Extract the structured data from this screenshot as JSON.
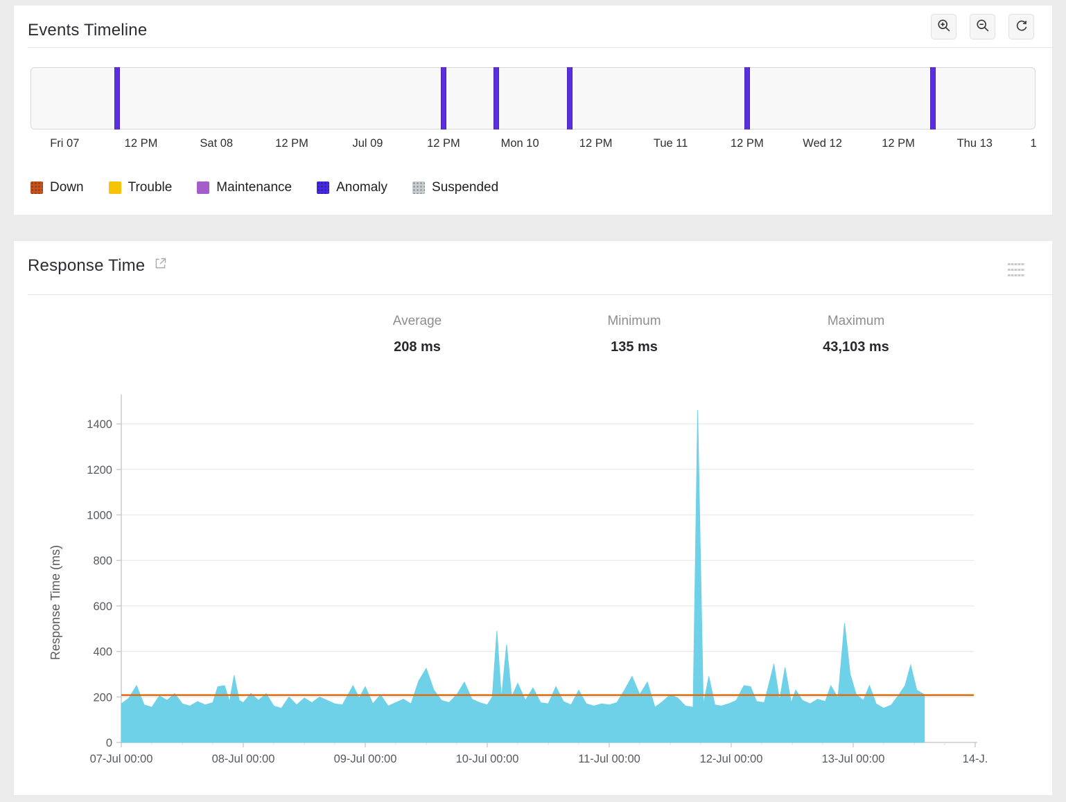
{
  "events_timeline": {
    "title": "Events Timeline",
    "toolbar": [
      "zoom-in",
      "zoom-out",
      "reset-zoom"
    ],
    "axis_labels": [
      {
        "text": "Fri 07",
        "pos_pct": 3.4
      },
      {
        "text": "12 PM",
        "pos_pct": 11.0
      },
      {
        "text": "Sat 08",
        "pos_pct": 18.5
      },
      {
        "text": "12 PM",
        "pos_pct": 26.0
      },
      {
        "text": "Jul 09",
        "pos_pct": 33.55
      },
      {
        "text": "12 PM",
        "pos_pct": 41.1
      },
      {
        "text": "Mon 10",
        "pos_pct": 48.7
      },
      {
        "text": "12 PM",
        "pos_pct": 56.25
      },
      {
        "text": "Tue 11",
        "pos_pct": 63.7
      },
      {
        "text": "12 PM",
        "pos_pct": 71.3
      },
      {
        "text": "Wed 12",
        "pos_pct": 78.8
      },
      {
        "text": "12 PM",
        "pos_pct": 86.35
      },
      {
        "text": "Thu 13",
        "pos_pct": 93.95
      },
      {
        "text": "1",
        "pos_pct": 99.8
      }
    ],
    "events": [
      {
        "type": "Anomaly",
        "pos_pct": 8.55,
        "color": "#5b2ee0"
      },
      {
        "type": "Anomaly",
        "pos_pct": 41.1,
        "color": "#5b2ee0"
      },
      {
        "type": "Anomaly",
        "pos_pct": 46.34,
        "color": "#5b2ee0"
      },
      {
        "type": "Anomaly",
        "pos_pct": 53.66,
        "color": "#5b2ee0"
      },
      {
        "type": "Anomaly",
        "pos_pct": 71.31,
        "color": "#5b2ee0"
      },
      {
        "type": "Anomaly",
        "pos_pct": 89.86,
        "color": "#5b2ee0"
      }
    ],
    "legend": [
      {
        "label": "Down",
        "color": "#c4531d",
        "pattern": "dots"
      },
      {
        "label": "Trouble",
        "color": "#f6c306",
        "pattern": "solid"
      },
      {
        "label": "Maintenance",
        "color": "#a55dc9",
        "pattern": "solid"
      },
      {
        "label": "Anomaly",
        "color": "#4629e0",
        "pattern": "dots"
      },
      {
        "label": "Suspended",
        "color": "#c7ced2",
        "pattern": "dots"
      }
    ]
  },
  "response_time": {
    "title": "Response Time",
    "stats": [
      {
        "label": "Average",
        "value": "208 ms"
      },
      {
        "label": "Minimum",
        "value": "135 ms"
      },
      {
        "label": "Maximum",
        "value": "43,103 ms"
      }
    ]
  },
  "chart_data": {
    "type": "area",
    "title": "Response Time",
    "xlabel": "",
    "ylabel": "Response Time (ms)",
    "x_tick_labels": [
      "07-Jul 00:00",
      "08-Jul 00:00",
      "09-Jul 00:00",
      "10-Jul 00:00",
      "11-Jul 00:00",
      "12-Jul 00:00",
      "13-Jul 00:00",
      "14-J."
    ],
    "y_ticks": [
      0,
      200,
      400,
      600,
      800,
      1000,
      1200,
      1400
    ],
    "ylim": [
      0,
      1530
    ],
    "grid": true,
    "average_line": {
      "value": 208,
      "color": "#dd6b10"
    },
    "series": [
      {
        "name": "Response Time",
        "color": "#6ed1e8",
        "x_unit": "hours since 07-Jul 00:00",
        "points": [
          [
            0,
            170
          ],
          [
            1.5,
            195
          ],
          [
            3,
            250
          ],
          [
            4.5,
            165
          ],
          [
            6,
            155
          ],
          [
            7.5,
            205
          ],
          [
            9,
            185
          ],
          [
            10.5,
            215
          ],
          [
            12,
            170
          ],
          [
            13.5,
            160
          ],
          [
            15,
            180
          ],
          [
            16.5,
            165
          ],
          [
            18,
            175
          ],
          [
            19,
            245
          ],
          [
            20.3,
            250
          ],
          [
            21.3,
            180
          ],
          [
            22.2,
            295
          ],
          [
            23.2,
            185
          ],
          [
            24,
            175
          ],
          [
            25.5,
            215
          ],
          [
            27,
            185
          ],
          [
            28.5,
            215
          ],
          [
            30,
            160
          ],
          [
            31.5,
            150
          ],
          [
            33,
            200
          ],
          [
            34.5,
            165
          ],
          [
            36,
            195
          ],
          [
            37.5,
            175
          ],
          [
            39,
            200
          ],
          [
            40.5,
            185
          ],
          [
            42,
            170
          ],
          [
            43.5,
            165
          ],
          [
            45.6,
            250
          ],
          [
            46.8,
            195
          ],
          [
            48,
            245
          ],
          [
            49.5,
            170
          ],
          [
            51,
            210
          ],
          [
            52.5,
            160
          ],
          [
            54,
            175
          ],
          [
            55.5,
            190
          ],
          [
            57,
            170
          ],
          [
            58.5,
            270
          ],
          [
            60,
            325
          ],
          [
            61.5,
            230
          ],
          [
            63,
            185
          ],
          [
            64.5,
            175
          ],
          [
            66,
            210
          ],
          [
            67.5,
            265
          ],
          [
            69,
            190
          ],
          [
            70.5,
            175
          ],
          [
            72,
            165
          ],
          [
            73,
            200
          ],
          [
            73.9,
            490
          ],
          [
            74.8,
            195
          ],
          [
            75.8,
            430
          ],
          [
            76.8,
            200
          ],
          [
            78,
            260
          ],
          [
            79.5,
            185
          ],
          [
            81,
            240
          ],
          [
            82.5,
            175
          ],
          [
            84,
            170
          ],
          [
            85.5,
            245
          ],
          [
            87,
            180
          ],
          [
            88.5,
            165
          ],
          [
            90,
            230
          ],
          [
            91.5,
            170
          ],
          [
            93,
            160
          ],
          [
            94.5,
            170
          ],
          [
            96,
            165
          ],
          [
            97.5,
            175
          ],
          [
            99,
            230
          ],
          [
            100.5,
            290
          ],
          [
            102,
            210
          ],
          [
            103.5,
            265
          ],
          [
            105,
            155
          ],
          [
            106.5,
            180
          ],
          [
            108,
            210
          ],
          [
            109.5,
            195
          ],
          [
            111,
            160
          ],
          [
            112.5,
            155
          ],
          [
            113.4,
            1460
          ],
          [
            114.5,
            165
          ],
          [
            115.6,
            290
          ],
          [
            116.8,
            165
          ],
          [
            118,
            160
          ],
          [
            119.5,
            170
          ],
          [
            121,
            185
          ],
          [
            122.5,
            250
          ],
          [
            123.8,
            245
          ],
          [
            125,
            180
          ],
          [
            126.5,
            175
          ],
          [
            128.4,
            345
          ],
          [
            129.5,
            185
          ],
          [
            130.6,
            330
          ],
          [
            131.8,
            175
          ],
          [
            132.7,
            230
          ],
          [
            134,
            185
          ],
          [
            135.5,
            170
          ],
          [
            137,
            190
          ],
          [
            138.5,
            180
          ],
          [
            139.6,
            250
          ],
          [
            141,
            195
          ],
          [
            142.3,
            525
          ],
          [
            143.4,
            300
          ],
          [
            144.6,
            210
          ],
          [
            146,
            185
          ],
          [
            147.2,
            250
          ],
          [
            148.5,
            170
          ],
          [
            150,
            150
          ],
          [
            151.5,
            165
          ],
          [
            153,
            210
          ],
          [
            154.2,
            250
          ],
          [
            155.3,
            340
          ],
          [
            156.5,
            230
          ],
          [
            158,
            210
          ]
        ]
      }
    ]
  }
}
